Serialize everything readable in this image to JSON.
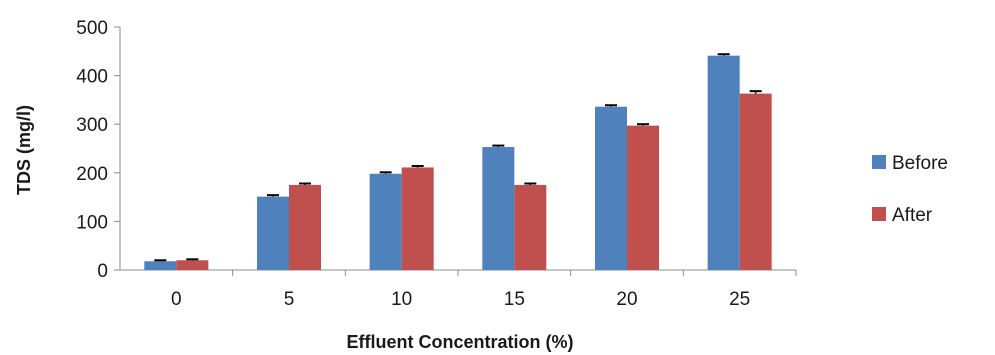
{
  "chart_data": {
    "type": "bar",
    "xlabel": "Effluent Concentration (%)",
    "ylabel": "TDS (mg/l)",
    "categories": [
      "0",
      "5",
      "10",
      "15",
      "20",
      "25"
    ],
    "ylim": [
      0,
      500
    ],
    "yticks": [
      0,
      100,
      200,
      300,
      400,
      500
    ],
    "grid": false,
    "legend_position": "right",
    "error_bars": true,
    "series": [
      {
        "name": "Before",
        "color": "#4f81bd",
        "values": [
          18,
          151,
          198,
          253,
          336,
          441
        ],
        "errors": [
          2,
          3,
          3,
          3,
          3,
          3
        ]
      },
      {
        "name": "After",
        "color": "#c0504d",
        "values": [
          20,
          175,
          211,
          175,
          297,
          363
        ],
        "errors": [
          2,
          3,
          3,
          3,
          3,
          5
        ]
      }
    ]
  }
}
